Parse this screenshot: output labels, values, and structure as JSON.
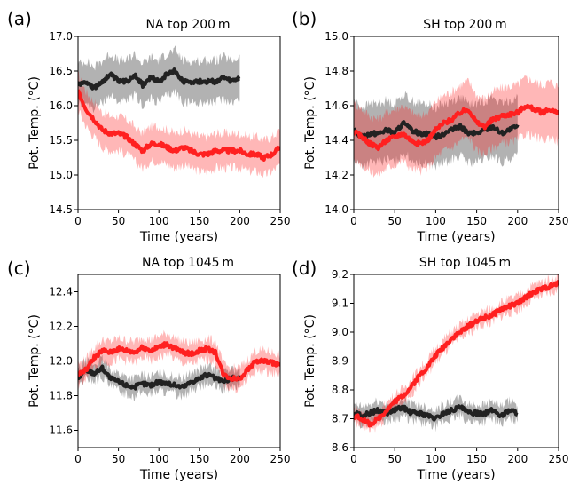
{
  "chart_data": [
    {
      "type": "line",
      "panel": "(a)",
      "title": "NA top 200 m",
      "xlabel": "Time (years)",
      "ylabel": "Pot. Temp. (°C)",
      "xlim": [
        0,
        250
      ],
      "ylim": [
        14.5,
        17.0
      ],
      "xticks": [
        "0",
        "50",
        "100",
        "150",
        "200",
        "250"
      ],
      "yticks": [
        "14.5",
        "15.0",
        "15.5",
        "16.0",
        "16.5",
        "17.0"
      ],
      "grid": false,
      "series": [
        {
          "color": "#ff2020",
          "x": [
            0,
            10,
            20,
            30,
            40,
            50,
            60,
            70,
            80,
            90,
            100,
            110,
            120,
            130,
            140,
            150,
            160,
            170,
            180,
            190,
            200,
            210,
            220,
            230,
            240,
            250
          ],
          "y": [
            16.2,
            15.95,
            15.8,
            15.65,
            15.6,
            15.6,
            15.55,
            15.45,
            15.35,
            15.45,
            15.45,
            15.4,
            15.35,
            15.4,
            15.35,
            15.3,
            15.3,
            15.35,
            15.35,
            15.35,
            15.35,
            15.3,
            15.3,
            15.25,
            15.3,
            15.4
          ],
          "band": 0.5
        },
        {
          "color": "#222222",
          "x": [
            0,
            10,
            20,
            30,
            40,
            50,
            60,
            70,
            80,
            90,
            100,
            110,
            120,
            130,
            140,
            150,
            160,
            170,
            180,
            190,
            200
          ],
          "y": [
            16.3,
            16.35,
            16.25,
            16.35,
            16.45,
            16.35,
            16.35,
            16.45,
            16.3,
            16.4,
            16.35,
            16.45,
            16.5,
            16.35,
            16.35,
            16.35,
            16.35,
            16.35,
            16.4,
            16.35,
            16.4
          ],
          "band": 0.6
        }
      ]
    },
    {
      "type": "line",
      "panel": "(b)",
      "title": "SH top 200 m",
      "xlabel": "Time (years)",
      "ylabel": "Pot. Temp. (°C)",
      "xlim": [
        0,
        250
      ],
      "ylim": [
        14.0,
        15.0
      ],
      "xticks": [
        "0",
        "50",
        "100",
        "150",
        "200",
        "250"
      ],
      "yticks": [
        "14.0",
        "14.2",
        "14.4",
        "14.6",
        "14.8",
        "15.0"
      ],
      "grid": false,
      "series": [
        {
          "color": "#ff2020",
          "x": [
            0,
            10,
            20,
            30,
            40,
            50,
            60,
            70,
            80,
            90,
            100,
            110,
            120,
            130,
            140,
            150,
            160,
            170,
            180,
            190,
            200,
            210,
            220,
            230,
            240,
            250
          ],
          "y": [
            14.45,
            14.42,
            14.38,
            14.36,
            14.4,
            14.42,
            14.44,
            14.4,
            14.38,
            14.4,
            14.46,
            14.5,
            14.52,
            14.56,
            14.58,
            14.5,
            14.48,
            14.52,
            14.54,
            14.55,
            14.56,
            14.6,
            14.58,
            14.56,
            14.58,
            14.55
          ],
          "band": 0.32
        },
        {
          "color": "#222222",
          "x": [
            0,
            10,
            20,
            30,
            40,
            50,
            60,
            70,
            80,
            90,
            100,
            110,
            120,
            130,
            140,
            150,
            160,
            170,
            180,
            190,
            200
          ],
          "y": [
            14.46,
            14.42,
            14.44,
            14.44,
            14.46,
            14.44,
            14.5,
            14.46,
            14.44,
            14.44,
            14.42,
            14.44,
            14.46,
            14.48,
            14.44,
            14.44,
            14.46,
            14.48,
            14.44,
            14.46,
            14.48
          ],
          "band": 0.34
        }
      ]
    },
    {
      "type": "line",
      "panel": "(c)",
      "title": "NA top 1045 m",
      "xlabel": "Time (years)",
      "ylabel": "Pot. Temp. (°C)",
      "xlim": [
        0,
        250
      ],
      "ylim": [
        11.5,
        12.5
      ],
      "xticks": [
        "0",
        "50",
        "100",
        "150",
        "200",
        "250"
      ],
      "yticks": [
        "11.6",
        "11.8",
        "12.0",
        "12.2",
        "12.4"
      ],
      "grid": false,
      "series": [
        {
          "color": "#ff2020",
          "x": [
            0,
            10,
            20,
            30,
            40,
            50,
            60,
            70,
            80,
            90,
            100,
            110,
            120,
            130,
            140,
            150,
            160,
            170,
            180,
            190,
            200,
            210,
            220,
            230,
            240,
            250
          ],
          "y": [
            11.92,
            11.95,
            12.02,
            12.06,
            12.05,
            12.07,
            12.06,
            12.05,
            12.08,
            12.06,
            12.08,
            12.1,
            12.07,
            12.05,
            12.04,
            12.06,
            12.07,
            12.05,
            11.92,
            11.9,
            11.9,
            11.95,
            12.0,
            12.0,
            11.99,
            11.98
          ],
          "band": 0.12
        },
        {
          "color": "#222222",
          "x": [
            0,
            10,
            20,
            30,
            40,
            50,
            60,
            70,
            80,
            90,
            100,
            110,
            120,
            130,
            140,
            150,
            160,
            170,
            180,
            190,
            200
          ],
          "y": [
            11.9,
            11.95,
            11.93,
            11.96,
            11.9,
            11.88,
            11.86,
            11.85,
            11.87,
            11.86,
            11.88,
            11.87,
            11.86,
            11.85,
            11.88,
            11.9,
            11.92,
            11.9,
            11.88,
            11.9,
            11.9
          ],
          "band": 0.1
        }
      ]
    },
    {
      "type": "line",
      "panel": "(d)",
      "title": "SH top 1045 m",
      "xlabel": "Time (years)",
      "ylabel": "Pot. Temp. (°C)",
      "xlim": [
        0,
        250
      ],
      "ylim": [
        8.6,
        9.2
      ],
      "xticks": [
        "0",
        "50",
        "100",
        "150",
        "200",
        "250"
      ],
      "yticks": [
        "8.6",
        "8.7",
        "8.8",
        "8.9",
        "9.0",
        "9.1",
        "9.2"
      ],
      "grid": false,
      "series": [
        {
          "color": "#ff2020",
          "x": [
            0,
            10,
            20,
            30,
            40,
            50,
            60,
            70,
            80,
            90,
            100,
            110,
            120,
            130,
            140,
            150,
            160,
            170,
            180,
            190,
            200,
            210,
            220,
            230,
            240,
            250
          ],
          "y": [
            8.71,
            8.7,
            8.68,
            8.7,
            8.73,
            8.76,
            8.78,
            8.81,
            8.85,
            8.88,
            8.92,
            8.95,
            8.98,
            9.0,
            9.02,
            9.04,
            9.05,
            9.06,
            9.08,
            9.09,
            9.1,
            9.12,
            9.14,
            9.15,
            9.16,
            9.17
          ],
          "band": 0.05
        },
        {
          "color": "#222222",
          "x": [
            0,
            10,
            20,
            30,
            40,
            50,
            60,
            70,
            80,
            90,
            100,
            110,
            120,
            130,
            140,
            150,
            160,
            170,
            180,
            190,
            200
          ],
          "y": [
            8.72,
            8.71,
            8.72,
            8.73,
            8.72,
            8.73,
            8.74,
            8.72,
            8.72,
            8.71,
            8.7,
            8.72,
            8.73,
            8.74,
            8.72,
            8.72,
            8.72,
            8.73,
            8.71,
            8.73,
            8.72
          ],
          "band": 0.06
        }
      ]
    }
  ]
}
